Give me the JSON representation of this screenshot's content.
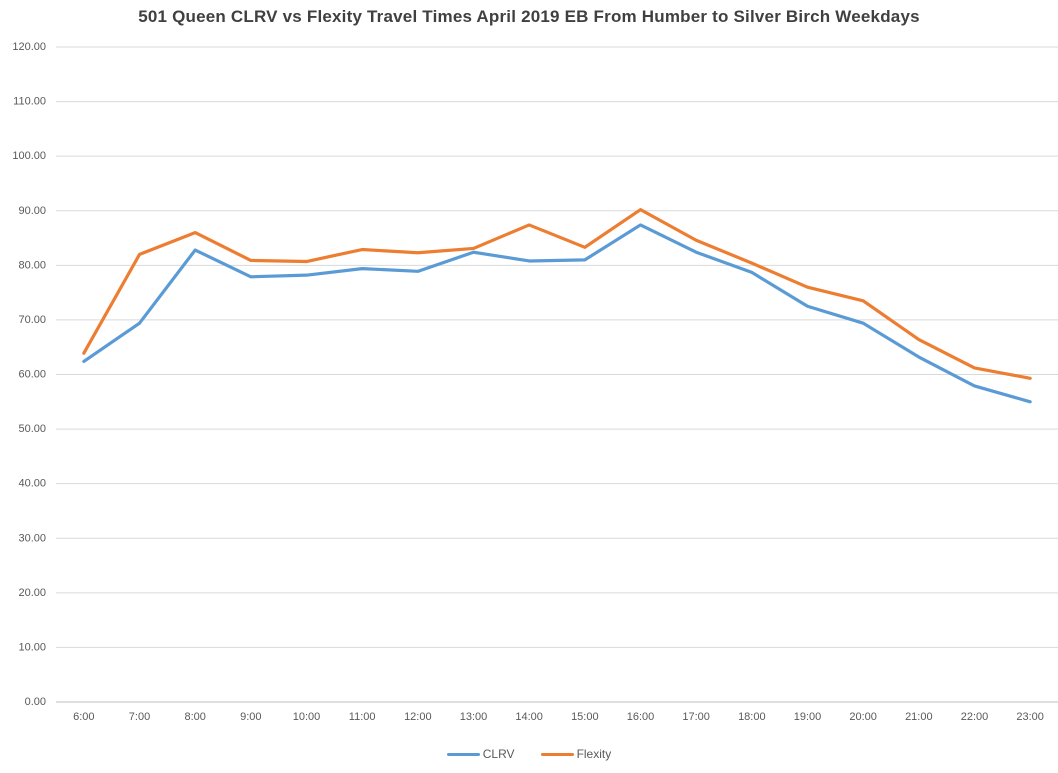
{
  "chart_data": {
    "type": "line",
    "title": "501 Queen CLRV vs Flexity Travel Times April 2019 EB From Humber to Silver Birch Weekdays",
    "categories": [
      "6:00",
      "7:00",
      "8:00",
      "9:00",
      "10:00",
      "11:00",
      "12:00",
      "13:00",
      "14:00",
      "15:00",
      "16:00",
      "17:00",
      "18:00",
      "19:00",
      "20:00",
      "21:00",
      "22:00",
      "23:00"
    ],
    "series": [
      {
        "name": "CLRV",
        "color": "#5B9BD5",
        "values": [
          62.4,
          69.4,
          82.8,
          77.9,
          78.2,
          79.4,
          78.9,
          82.4,
          80.8,
          81.0,
          87.4,
          82.4,
          78.7,
          72.5,
          69.4,
          63.2,
          57.9,
          55.0
        ]
      },
      {
        "name": "Flexity",
        "color": "#ED7D31",
        "values": [
          63.9,
          82.0,
          86.0,
          80.9,
          80.7,
          82.9,
          82.3,
          83.1,
          87.4,
          83.3,
          90.2,
          84.6,
          80.4,
          76.0,
          73.5,
          66.4,
          61.2,
          59.3
        ]
      }
    ],
    "ylim": [
      0,
      120
    ],
    "ytick_step": 10,
    "ytick_decimals": 2,
    "grid": true,
    "legend_position": "bottom"
  },
  "style_colors": {
    "title_text": "#404040",
    "tick_label": "#595959",
    "gridline": "#D9D9D9",
    "axis_line": "#BFBFBF",
    "background": "#FFFFFF"
  }
}
